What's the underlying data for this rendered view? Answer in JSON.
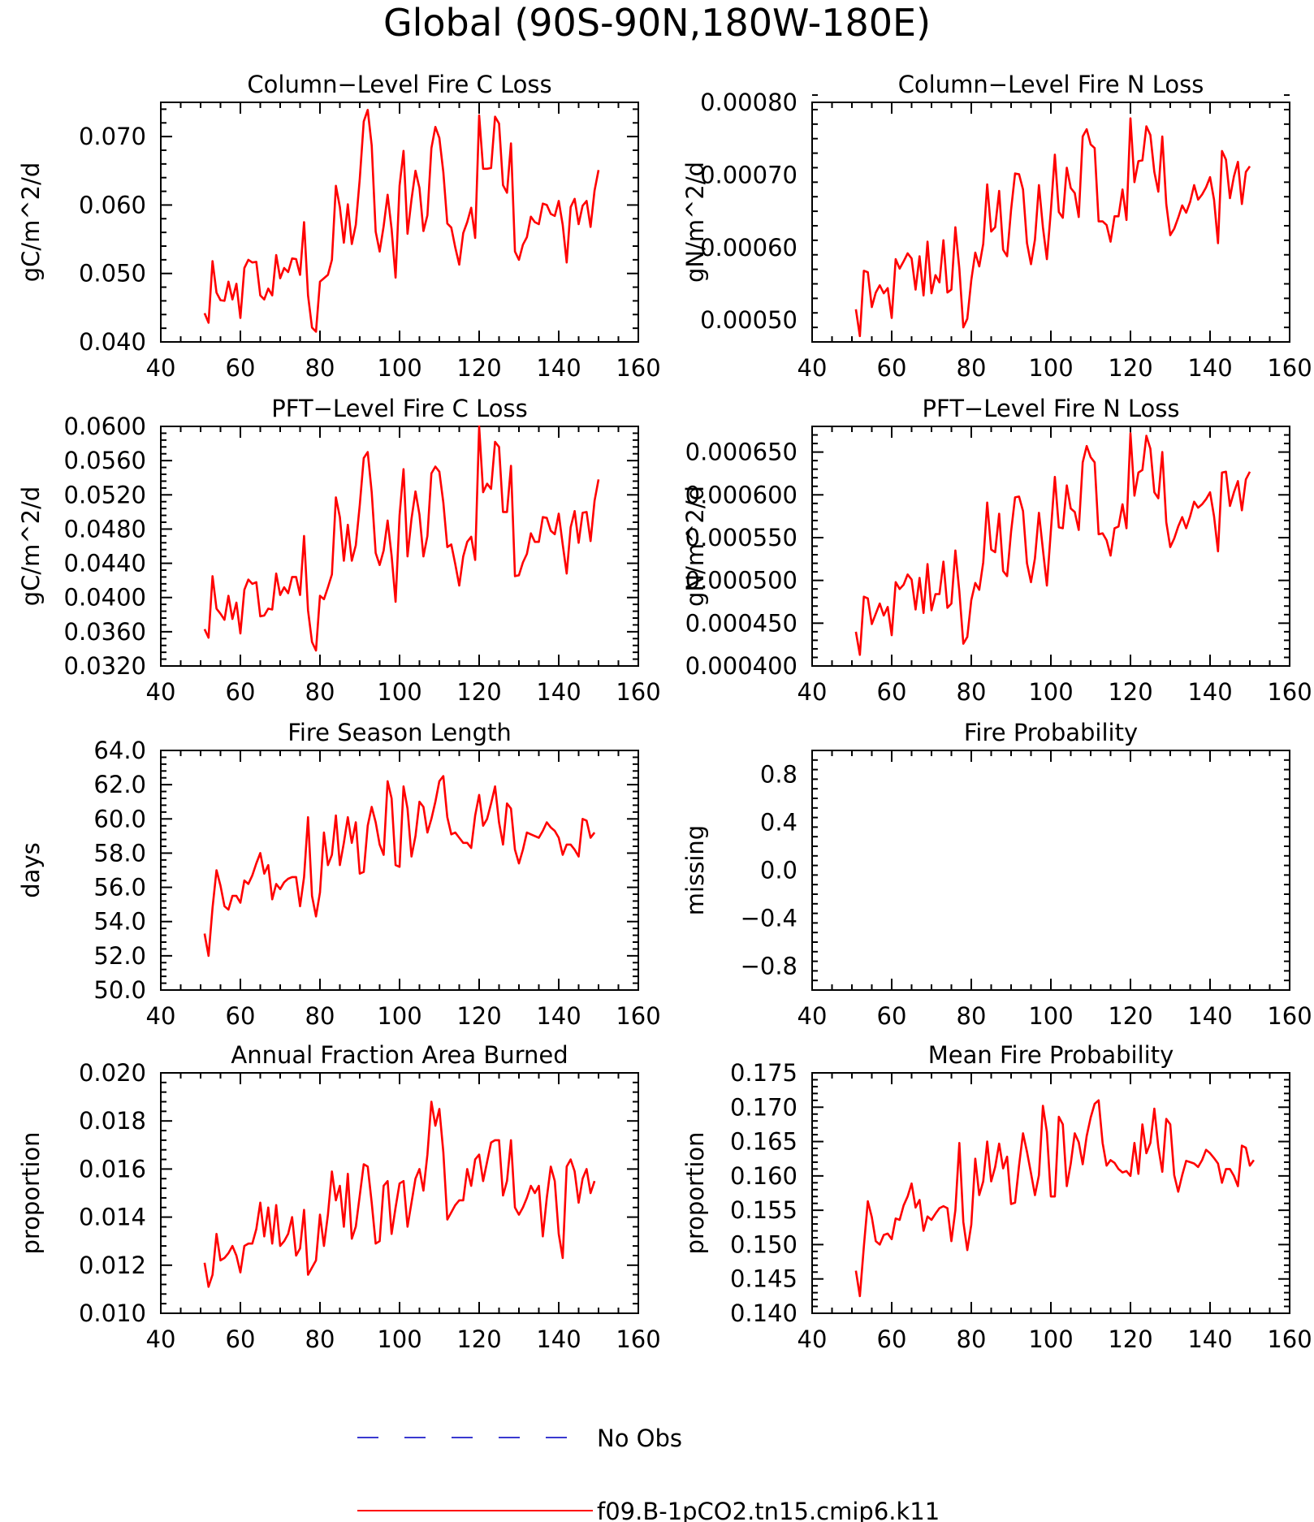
{
  "title": "Global (90S-90N,180W-180E)",
  "colors": {
    "model": "#ff0000",
    "obs": "#3a3ad0",
    "axis": "#000000"
  },
  "legend": {
    "entries": [
      {
        "label": "No Obs",
        "style": "dashed",
        "color": "#3a3ad0"
      },
      {
        "label": "f09.B-1pCO2.tn15.cmip6.k11",
        "style": "solid",
        "color": "#ff0000"
      }
    ]
  },
  "chart_data": [
    {
      "type": "line",
      "title": "Column-Level Fire C Loss",
      "xlabel": "",
      "ylabel": "gC/m^2/d",
      "xlim": [
        40,
        160
      ],
      "ylim": [
        0.04,
        0.075
      ],
      "xticks": [
        "40",
        "60",
        "80",
        "100",
        "120",
        "140",
        "160"
      ],
      "yticks": [
        "0.040",
        "0.050",
        "0.060",
        "0.070"
      ],
      "series": [
        {
          "x_start": 51,
          "values": [
            0.0442,
            0.0428,
            0.0518,
            0.0472,
            0.0461,
            0.046,
            0.0488,
            0.0462,
            0.0485,
            0.0435,
            0.0508,
            0.052,
            0.0516,
            0.0517,
            0.0468,
            0.0462,
            0.0478,
            0.0468,
            0.0527,
            0.0493,
            0.0508,
            0.0502,
            0.0522,
            0.0521,
            0.0498,
            0.0575,
            0.0468,
            0.0421,
            0.0415,
            0.0488,
            0.0493,
            0.0498,
            0.052,
            0.0628,
            0.0597,
            0.0545,
            0.0601,
            0.0543,
            0.0571,
            0.0638,
            0.0722,
            0.0739,
            0.0687,
            0.0561,
            0.0532,
            0.0569,
            0.0615,
            0.0565,
            0.0494,
            0.0628,
            0.0679,
            0.0558,
            0.0608,
            0.065,
            0.0625,
            0.0562,
            0.0585,
            0.0683,
            0.0714,
            0.0698,
            0.0648,
            0.0573,
            0.0567,
            0.0538,
            0.0513,
            0.0559,
            0.0575,
            0.0596,
            0.0552,
            0.0731,
            0.0653,
            0.0653,
            0.0654,
            0.0729,
            0.0719,
            0.0629,
            0.0618,
            0.069,
            0.0532,
            0.052,
            0.0542,
            0.0553,
            0.0583,
            0.0575,
            0.0572,
            0.0602,
            0.06,
            0.0587,
            0.0584,
            0.0606,
            0.0571,
            0.0516,
            0.0597,
            0.0609,
            0.0572,
            0.0599,
            0.0606,
            0.0568,
            0.0621,
            0.0651
          ]
        }
      ]
    },
    {
      "type": "line",
      "title": "Column-Level Fire N Loss",
      "xlabel": "",
      "ylabel": "gN/m^2/d",
      "xlim": [
        40,
        160
      ],
      "ylim": [
        0.00047,
        0.0008
      ],
      "xticks": [
        "40",
        "60",
        "80",
        "100",
        "120",
        "140",
        "160"
      ],
      "yticks": [
        "0.00050",
        "0.00060",
        "0.00070",
        "0.00080"
      ],
      "series": [
        {
          "x_start": 51,
          "values": [
            0.000515,
            0.000478,
            0.000568,
            0.000566,
            0.000518,
            0.000538,
            0.000548,
            0.000537,
            0.000544,
            0.000503,
            0.000584,
            0.000571,
            0.000581,
            0.000592,
            0.000585,
            0.000542,
            0.000588,
            0.000534,
            0.000608,
            0.000537,
            0.000562,
            0.000552,
            0.00061,
            0.000538,
            0.000542,
            0.000628,
            0.000571,
            0.00049,
            0.000502,
            0.000555,
            0.000593,
            0.000574,
            0.000605,
            0.000687,
            0.000622,
            0.000628,
            0.000678,
            0.000597,
            0.000588,
            0.000652,
            0.000702,
            0.000701,
            0.00068,
            0.000606,
            0.000577,
            0.000611,
            0.000686,
            0.000628,
            0.000584,
            0.000651,
            0.000728,
            0.000649,
            0.000641,
            0.00071,
            0.000682,
            0.000675,
            0.000642,
            0.000753,
            0.000763,
            0.000742,
            0.000737,
            0.000636,
            0.000636,
            0.000631,
            0.000608,
            0.000643,
            0.000643,
            0.00068,
            0.000638,
            0.000778,
            0.00069,
            0.000719,
            0.00072,
            0.000767,
            0.000755,
            0.000704,
            0.000677,
            0.000753,
            0.00066,
            0.000617,
            0.000626,
            0.000641,
            0.000658,
            0.000648,
            0.000663,
            0.000686,
            0.000666,
            0.000673,
            0.000683,
            0.000697,
            0.000666,
            0.000606,
            0.000733,
            0.000721,
            0.000668,
            0.000698,
            0.000718,
            0.00066,
            0.000704,
            0.000712
          ]
        }
      ]
    },
    {
      "type": "line",
      "title": "PFT-Level Fire C Loss",
      "xlabel": "",
      "ylabel": "gC/m^2/d",
      "xlim": [
        40,
        160
      ],
      "ylim": [
        0.032,
        0.06
      ],
      "xticks": [
        "40",
        "60",
        "80",
        "100",
        "120",
        "140",
        "160"
      ],
      "yticks": [
        "0.0320",
        "0.0360",
        "0.0400",
        "0.0440",
        "0.0480",
        "0.0520",
        "0.0560",
        "0.0600"
      ],
      "series": [
        {
          "x_start": 51,
          "values": [
            0.0363,
            0.0353,
            0.0425,
            0.0387,
            0.0381,
            0.0374,
            0.0402,
            0.0375,
            0.0394,
            0.0358,
            0.0409,
            0.0421,
            0.0416,
            0.0418,
            0.0378,
            0.0379,
            0.0387,
            0.0386,
            0.0428,
            0.0403,
            0.0412,
            0.0405,
            0.0424,
            0.0424,
            0.0403,
            0.0472,
            0.0385,
            0.0348,
            0.0338,
            0.0402,
            0.0398,
            0.0412,
            0.0427,
            0.0517,
            0.0494,
            0.0443,
            0.0485,
            0.0443,
            0.0461,
            0.0508,
            0.0563,
            0.057,
            0.0523,
            0.0452,
            0.0438,
            0.0455,
            0.049,
            0.0449,
            0.0395,
            0.0496,
            0.055,
            0.0448,
            0.0492,
            0.0524,
            0.0497,
            0.0448,
            0.0472,
            0.0545,
            0.0553,
            0.0547,
            0.0511,
            0.0459,
            0.0462,
            0.0439,
            0.0414,
            0.0448,
            0.0465,
            0.0471,
            0.0444,
            0.06,
            0.0523,
            0.0533,
            0.0527,
            0.0582,
            0.0576,
            0.05,
            0.05,
            0.0554,
            0.0425,
            0.0426,
            0.0441,
            0.0451,
            0.0475,
            0.0465,
            0.0465,
            0.0494,
            0.0493,
            0.0478,
            0.0474,
            0.0498,
            0.0462,
            0.0428,
            0.0482,
            0.0501,
            0.0464,
            0.0499,
            0.05,
            0.0466,
            0.0513,
            0.0538
          ]
        }
      ]
    },
    {
      "type": "line",
      "title": "PFT-Level Fire N Loss",
      "xlabel": "",
      "ylabel": "gN/m^2/d",
      "xlim": [
        40,
        160
      ],
      "ylim": [
        0.0004,
        0.00068
      ],
      "xticks": [
        "40",
        "60",
        "80",
        "100",
        "120",
        "140",
        "160"
      ],
      "yticks": [
        "0.000400",
        "0.000450",
        "0.000500",
        "0.000550",
        "0.000600",
        "0.000650"
      ],
      "series": [
        {
          "x_start": 51,
          "values": [
            0.00044,
            0.000413,
            0.000481,
            0.000479,
            0.000449,
            0.000461,
            0.000473,
            0.000459,
            0.000469,
            0.000436,
            0.000498,
            0.00049,
            0.000495,
            0.000507,
            0.000501,
            0.000466,
            0.000503,
            0.000462,
            0.000519,
            0.000465,
            0.000484,
            0.000484,
            0.000522,
            0.000468,
            0.000473,
            0.000535,
            0.000487,
            0.000426,
            0.000434,
            0.000477,
            0.000497,
            0.000489,
            0.000521,
            0.000591,
            0.000536,
            0.000533,
            0.000578,
            0.000511,
            0.000505,
            0.000557,
            0.000597,
            0.000598,
            0.000581,
            0.00052,
            0.000498,
            0.000526,
            0.000579,
            0.000536,
            0.000494,
            0.000558,
            0.000621,
            0.000562,
            0.000561,
            0.000611,
            0.000584,
            0.00058,
            0.000559,
            0.000638,
            0.000657,
            0.000644,
            0.000638,
            0.000554,
            0.000555,
            0.000547,
            0.000529,
            0.000561,
            0.000563,
            0.000589,
            0.000561,
            0.000672,
            0.000599,
            0.000626,
            0.000629,
            0.000669,
            0.000654,
            0.000603,
            0.000596,
            0.00065,
            0.000568,
            0.000539,
            0.000549,
            0.000563,
            0.000574,
            0.000561,
            0.000575,
            0.000592,
            0.000585,
            0.000589,
            0.000595,
            0.000603,
            0.000575,
            0.000534,
            0.000626,
            0.000627,
            0.000587,
            0.000603,
            0.000616,
            0.000582,
            0.000618,
            0.000627
          ]
        }
      ]
    },
    {
      "type": "line",
      "title": "Fire Season Length",
      "xlabel": "",
      "ylabel": "days",
      "xlim": [
        40,
        160
      ],
      "ylim": [
        50,
        64
      ],
      "xticks": [
        "40",
        "60",
        "80",
        "100",
        "120",
        "140",
        "160"
      ],
      "yticks": [
        "50.0",
        "52.0",
        "54.0",
        "56.0",
        "58.0",
        "60.0",
        "62.0",
        "64.0"
      ],
      "series": [
        {
          "x_start": 51,
          "values": [
            53.3,
            52.0,
            54.8,
            57.0,
            56.1,
            54.9,
            54.7,
            55.5,
            55.5,
            55.1,
            56.4,
            56.2,
            56.7,
            57.4,
            58.0,
            56.8,
            57.3,
            55.3,
            56.2,
            55.9,
            56.3,
            56.5,
            56.6,
            56.6,
            54.9,
            56.6,
            60.1,
            55.5,
            54.3,
            55.7,
            59.2,
            57.3,
            57.9,
            60.2,
            57.3,
            58.6,
            60.1,
            58.6,
            59.8,
            56.8,
            56.9,
            59.6,
            60.7,
            59.8,
            58.5,
            57.9,
            62.2,
            61.2,
            57.3,
            57.2,
            61.9,
            60.6,
            57.8,
            59.0,
            61.0,
            60.7,
            59.2,
            60.0,
            61.0,
            62.2,
            62.5,
            60.1,
            59.1,
            59.2,
            58.9,
            58.6,
            58.6,
            58.3,
            60.2,
            61.4,
            59.6,
            60.0,
            60.9,
            61.9,
            59.8,
            58.5,
            60.9,
            60.6,
            58.2,
            57.4,
            58.2,
            59.2,
            59.1,
            59.0,
            58.9,
            59.3,
            59.8,
            59.5,
            59.3,
            58.9,
            57.9,
            58.5,
            58.5,
            58.2,
            57.8,
            60.0,
            59.9,
            58.9,
            59.2
          ]
        }
      ]
    },
    {
      "type": "line",
      "title": "Fire Probability",
      "xlabel": "",
      "ylabel": "missing",
      "xlim": [
        40,
        160
      ],
      "ylim": [
        -1,
        1
      ],
      "xticks": [
        "40",
        "60",
        "80",
        "100",
        "120",
        "140",
        "160"
      ],
      "yticks": [
        "-0.8",
        "-0.4",
        "0.0",
        "0.4",
        "0.8"
      ],
      "series": []
    },
    {
      "type": "line",
      "title": "Annual Fraction Area Burned",
      "xlabel": "",
      "ylabel": "proportion",
      "xlim": [
        40,
        160
      ],
      "ylim": [
        0.01,
        0.02
      ],
      "xticks": [
        "40",
        "60",
        "80",
        "100",
        "120",
        "140",
        "160"
      ],
      "yticks": [
        "0.010",
        "0.012",
        "0.014",
        "0.016",
        "0.018",
        "0.020"
      ],
      "series": [
        {
          "x_start": 51,
          "values": [
            0.0121,
            0.0111,
            0.0116,
            0.0133,
            0.0122,
            0.0123,
            0.0125,
            0.0128,
            0.0124,
            0.0117,
            0.0128,
            0.0129,
            0.0129,
            0.0135,
            0.0146,
            0.0132,
            0.0144,
            0.0129,
            0.0145,
            0.0128,
            0.013,
            0.0133,
            0.014,
            0.0124,
            0.0127,
            0.0143,
            0.0116,
            0.0119,
            0.0122,
            0.0141,
            0.0128,
            0.0141,
            0.0159,
            0.0147,
            0.0153,
            0.0136,
            0.0158,
            0.0131,
            0.0136,
            0.0149,
            0.0162,
            0.0161,
            0.0146,
            0.0129,
            0.013,
            0.0153,
            0.0155,
            0.0133,
            0.0144,
            0.0154,
            0.0155,
            0.0136,
            0.0146,
            0.0156,
            0.016,
            0.0151,
            0.0166,
            0.0188,
            0.0178,
            0.0185,
            0.0167,
            0.0139,
            0.0142,
            0.0145,
            0.0147,
            0.0147,
            0.016,
            0.0153,
            0.0164,
            0.0166,
            0.0155,
            0.0163,
            0.0171,
            0.0172,
            0.0172,
            0.0149,
            0.0155,
            0.0172,
            0.0144,
            0.0141,
            0.0144,
            0.0148,
            0.0153,
            0.015,
            0.0153,
            0.0132,
            0.0148,
            0.0161,
            0.0155,
            0.0133,
            0.0123,
            0.0161,
            0.0164,
            0.0159,
            0.0146,
            0.0156,
            0.016,
            0.015,
            0.0155
          ]
        }
      ]
    },
    {
      "type": "line",
      "title": "Mean Fire Probability",
      "xlabel": "",
      "ylabel": "proportion",
      "xlim": [
        40,
        160
      ],
      "ylim": [
        0.14,
        0.175
      ],
      "xticks": [
        "40",
        "60",
        "80",
        "100",
        "120",
        "140",
        "160"
      ],
      "yticks": [
        "0.140",
        "0.145",
        "0.150",
        "0.155",
        "0.160",
        "0.165",
        "0.170",
        "0.175"
      ],
      "series": [
        {
          "x_start": 51,
          "values": [
            0.1462,
            0.1425,
            0.1497,
            0.1563,
            0.154,
            0.1505,
            0.15,
            0.1514,
            0.1516,
            0.1508,
            0.1538,
            0.1536,
            0.1557,
            0.157,
            0.1589,
            0.1554,
            0.1565,
            0.152,
            0.1541,
            0.1536,
            0.1545,
            0.1553,
            0.1556,
            0.1553,
            0.1505,
            0.155,
            0.1648,
            0.1533,
            0.1492,
            0.1529,
            0.1625,
            0.1572,
            0.1592,
            0.165,
            0.1592,
            0.1613,
            0.1647,
            0.1611,
            0.1628,
            0.1559,
            0.1561,
            0.1615,
            0.1662,
            0.1635,
            0.1604,
            0.1572,
            0.1601,
            0.1702,
            0.1664,
            0.157,
            0.157,
            0.1686,
            0.1675,
            0.1585,
            0.1618,
            0.1662,
            0.1649,
            0.1617,
            0.1658,
            0.1685,
            0.1705,
            0.171,
            0.1648,
            0.1615,
            0.1623,
            0.1619,
            0.161,
            0.1605,
            0.1607,
            0.16,
            0.1648,
            0.1603,
            0.1675,
            0.1633,
            0.1648,
            0.1698,
            0.1642,
            0.1606,
            0.1683,
            0.1675,
            0.1601,
            0.1577,
            0.1601,
            0.1622,
            0.162,
            0.1618,
            0.1613,
            0.1623,
            0.1638,
            0.1633,
            0.1626,
            0.1618,
            0.159,
            0.161,
            0.161,
            0.16,
            0.1585,
            0.1644,
            0.1641,
            0.1615,
            0.1623
          ]
        }
      ]
    }
  ]
}
